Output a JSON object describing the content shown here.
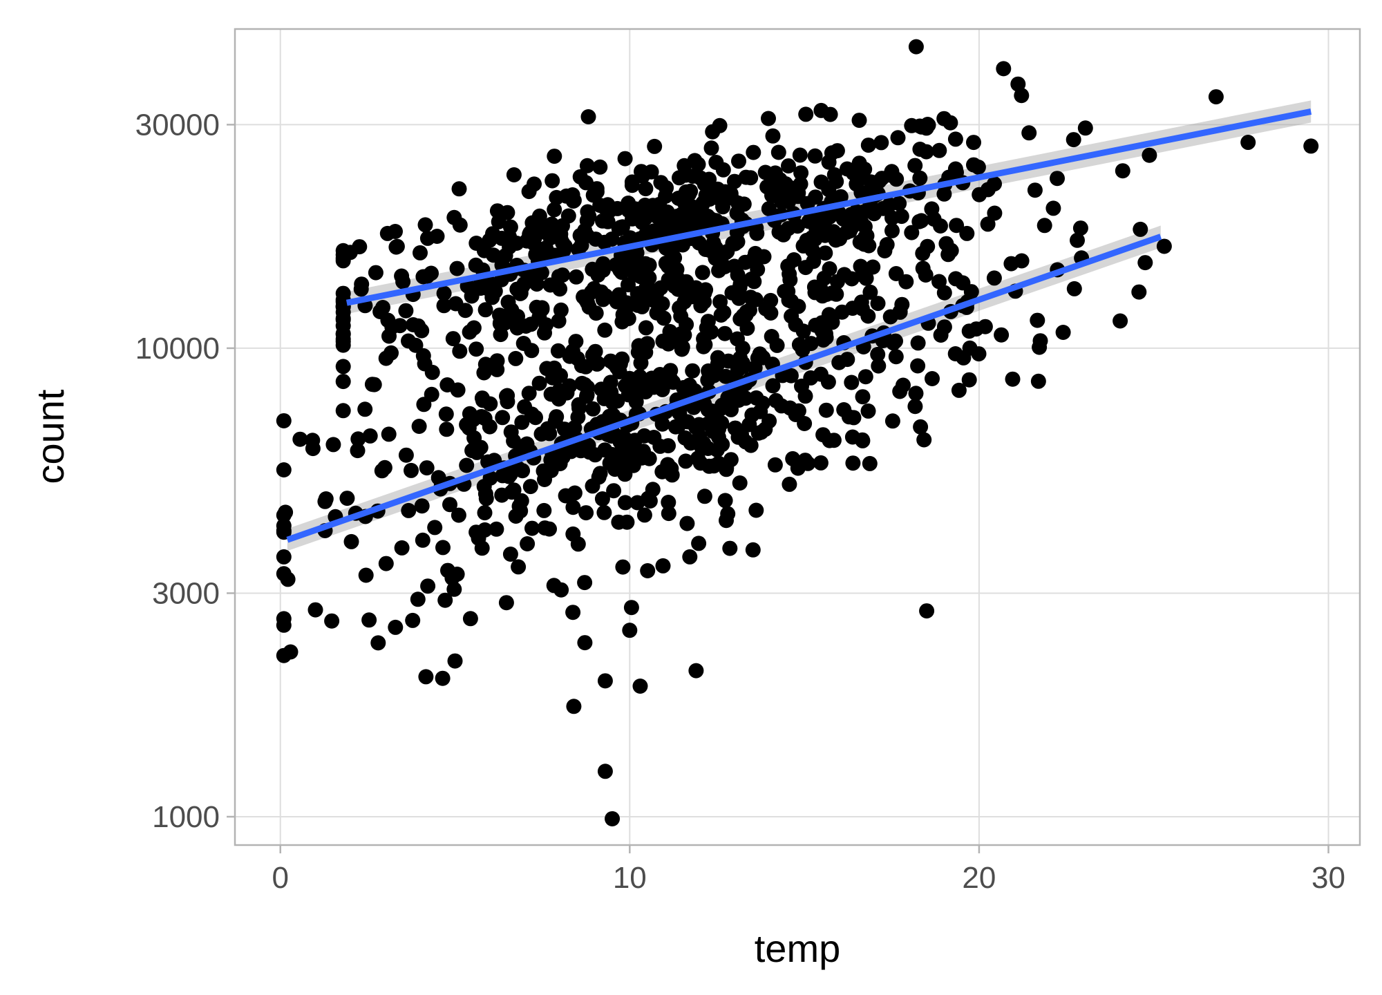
{
  "chart_data": {
    "type": "scatter",
    "xlabel": "temp",
    "ylabel": "count",
    "x_ticks": [
      0,
      10,
      20,
      30
    ],
    "y_ticks": [
      1000,
      3000,
      10000,
      30000
    ],
    "y_scale": "log",
    "xlim": [
      -1.3,
      30.9
    ],
    "ylim": [
      870,
      48000
    ],
    "grid": true,
    "legend": "none",
    "point_color": "#000000",
    "line_color": "#3366ff",
    "band_color": "#999999",
    "points": {
      "clusters": [
        {
          "x_center": 11.0,
          "x_spread": 5.0,
          "y_log_center": 4.33,
          "y_log_spread": 0.09,
          "n": 600,
          "x_min": 1.8,
          "x_max": 27.5
        },
        {
          "x_center": 11.0,
          "x_spread": 5.0,
          "y_log_center": 3.93,
          "y_log_spread": 0.14,
          "n": 650,
          "x_min": 0.1,
          "x_max": 25.3
        }
      ],
      "outliers": [
        {
          "x": 18.2,
          "y": 44000
        },
        {
          "x": 20.7,
          "y": 39500
        },
        {
          "x": 9.3,
          "y": 1250
        },
        {
          "x": 9.5,
          "y": 990
        },
        {
          "x": 18.5,
          "y": 2750
        },
        {
          "x": 8.4,
          "y": 1720
        },
        {
          "x": 5.0,
          "y": 2150
        },
        {
          "x": 11.9,
          "y": 2050
        },
        {
          "x": 29.5,
          "y": 27000
        },
        {
          "x": 21.7,
          "y": 8500
        },
        {
          "x": 0.1,
          "y": 7000
        },
        {
          "x": 2.8,
          "y": 2350
        },
        {
          "x": 9.3,
          "y": 1950
        },
        {
          "x": 10.3,
          "y": 1900
        },
        {
          "x": 10.0,
          "y": 2500
        },
        {
          "x": 25.3,
          "y": 16500
        },
        {
          "x": 27.7,
          "y": 27500
        }
      ]
    },
    "fit_lines": [
      {
        "x": [
          1.9,
          29.5
        ],
        "y": [
          12500,
          32000
        ]
      },
      {
        "x": [
          0.2,
          25.2
        ],
        "y": [
          3900,
          17300
        ]
      }
    ]
  }
}
